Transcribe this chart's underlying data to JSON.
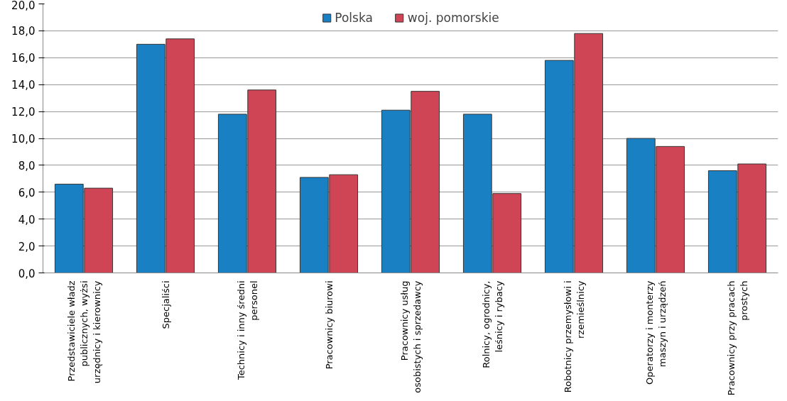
{
  "chart_data": {
    "type": "bar",
    "categories": [
      "Przedstawiciele władz publicznych, wyżsi urzędnicy i kierownicy",
      "Specjaliści",
      "Technicy i inny średni personel",
      "Pracownicy biurowi",
      "Pracownicy usług osobistych i sprzedawcy",
      "Rolnicy, ogrodnicy, leśnicy i rybacy",
      "Robotnicy przemysłowi i rzemieślnicy",
      "Operatorzy i monterzy maszyn i urządzeń",
      "Pracownicy przy pracach prostych"
    ],
    "series": [
      {
        "name": "Polska",
        "color": "#1a80c4",
        "values": [
          6.6,
          17.0,
          11.8,
          7.1,
          12.1,
          11.8,
          15.8,
          10.0,
          7.6
        ]
      },
      {
        "name": "woj. pomorskie",
        "color": "#d04555",
        "values": [
          6.3,
          17.4,
          13.6,
          7.3,
          13.5,
          5.9,
          17.8,
          9.4,
          8.1
        ]
      }
    ],
    "ylim": [
      0,
      20
    ],
    "yticks": [
      {
        "value": 0,
        "label": "0,0"
      },
      {
        "value": 2,
        "label": "2,0"
      },
      {
        "value": 4,
        "label": "4,0"
      },
      {
        "value": 6,
        "label": "6,0"
      },
      {
        "value": 8,
        "label": "8,0"
      },
      {
        "value": 10,
        "label": "10,0"
      },
      {
        "value": 12,
        "label": "12,0"
      },
      {
        "value": 14,
        "label": "14,0"
      },
      {
        "value": 16,
        "label": "16,0"
      },
      {
        "value": 18,
        "label": "18,0"
      },
      {
        "value": 20,
        "label": "20,0"
      }
    ],
    "grid": "y",
    "legend": "top"
  }
}
